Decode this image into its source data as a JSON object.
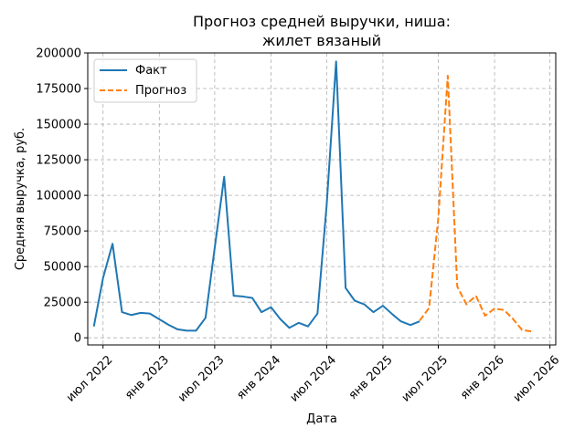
{
  "chart_data": {
    "type": "line",
    "title_lines": [
      "Прогноз средней выручки, ниша:",
      "жилет вязаный"
    ],
    "xlabel": "Дата",
    "ylabel": "Средняя выручка, руб.",
    "xlim": [
      "2022-05-12",
      "2026-07-20"
    ],
    "ylim": [
      -5000,
      200000
    ],
    "x_ticks": [
      {
        "date": "2022-07-01",
        "label": "июл 2022"
      },
      {
        "date": "2023-01-01",
        "label": "янв 2023"
      },
      {
        "date": "2023-07-01",
        "label": "июл 2023"
      },
      {
        "date": "2024-01-01",
        "label": "янв 2024"
      },
      {
        "date": "2024-07-01",
        "label": "июл 2024"
      },
      {
        "date": "2025-01-01",
        "label": "янв 2025"
      },
      {
        "date": "2025-07-01",
        "label": "июл 2025"
      },
      {
        "date": "2026-01-01",
        "label": "янв 2026"
      },
      {
        "date": "2026-07-01",
        "label": "июл 2026"
      }
    ],
    "y_ticks": [
      {
        "value": 0,
        "label": "0"
      },
      {
        "value": 25000,
        "label": "25000"
      },
      {
        "value": 50000,
        "label": "50000"
      },
      {
        "value": 75000,
        "label": "75000"
      },
      {
        "value": 100000,
        "label": "100000"
      },
      {
        "value": 125000,
        "label": "125000"
      },
      {
        "value": 150000,
        "label": "150000"
      },
      {
        "value": 175000,
        "label": "175000"
      },
      {
        "value": 200000,
        "label": "200000"
      }
    ],
    "grid": true,
    "legend_position": "top-left",
    "series": [
      {
        "name": "Факт",
        "color": "#1f77b4",
        "style": "solid",
        "points": [
          [
            "2022-06-01",
            8000
          ],
          [
            "2022-07-01",
            42000
          ],
          [
            "2022-08-01",
            66000
          ],
          [
            "2022-09-01",
            18000
          ],
          [
            "2022-10-01",
            16000
          ],
          [
            "2022-11-01",
            17500
          ],
          [
            "2022-12-01",
            17000
          ],
          [
            "2023-01-01",
            13000
          ],
          [
            "2023-02-01",
            9000
          ],
          [
            "2023-03-01",
            6000
          ],
          [
            "2023-04-01",
            5000
          ],
          [
            "2023-05-01",
            5000
          ],
          [
            "2023-06-01",
            14000
          ],
          [
            "2023-07-01",
            63000
          ],
          [
            "2023-08-01",
            113000
          ],
          [
            "2023-09-01",
            29500
          ],
          [
            "2023-10-01",
            29000
          ],
          [
            "2023-11-01",
            28000
          ],
          [
            "2023-12-01",
            18000
          ],
          [
            "2024-01-01",
            21500
          ],
          [
            "2024-02-01",
            13000
          ],
          [
            "2024-03-01",
            7000
          ],
          [
            "2024-04-01",
            10500
          ],
          [
            "2024-05-01",
            8000
          ],
          [
            "2024-06-01",
            17000
          ],
          [
            "2024-07-01",
            93000
          ],
          [
            "2024-08-01",
            194000
          ],
          [
            "2024-09-01",
            35000
          ],
          [
            "2024-10-01",
            26000
          ],
          [
            "2024-11-01",
            23500
          ],
          [
            "2024-12-01",
            18000
          ],
          [
            "2025-01-01",
            22500
          ],
          [
            "2025-02-01",
            16500
          ],
          [
            "2025-03-01",
            11500
          ],
          [
            "2025-04-01",
            9000
          ],
          [
            "2025-05-01",
            11500
          ]
        ]
      },
      {
        "name": "Прогноз",
        "color": "#ff7f0e",
        "style": "dashed",
        "points": [
          [
            "2025-05-01",
            12000
          ],
          [
            "2025-06-01",
            21000
          ],
          [
            "2025-07-01",
            84000
          ],
          [
            "2025-08-01",
            184000
          ],
          [
            "2025-09-01",
            36000
          ],
          [
            "2025-10-01",
            23500
          ],
          [
            "2025-11-01",
            29500
          ],
          [
            "2025-12-01",
            15500
          ],
          [
            "2026-01-01",
            20500
          ],
          [
            "2026-02-01",
            19500
          ],
          [
            "2026-03-01",
            13500
          ],
          [
            "2026-04-01",
            5500
          ],
          [
            "2026-05-01",
            4500
          ]
        ]
      }
    ]
  }
}
